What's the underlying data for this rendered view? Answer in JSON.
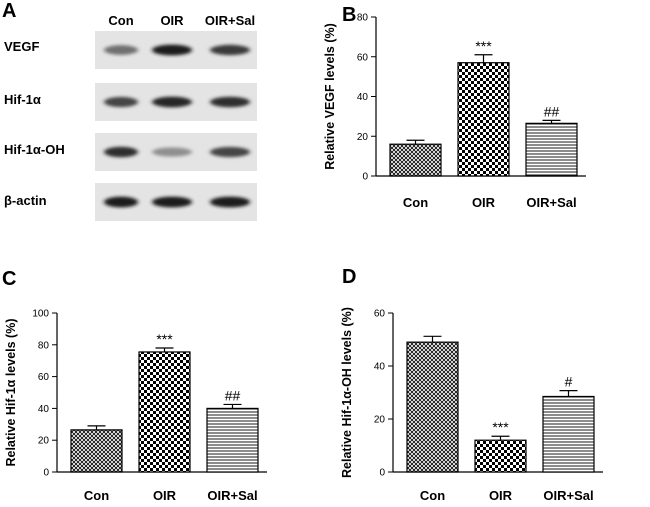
{
  "panels": {
    "A": "A",
    "B": "B",
    "C": "C",
    "D": "D"
  },
  "blot": {
    "lanes": [
      "Con",
      "OIR",
      "OIR+Sal"
    ],
    "rows": [
      {
        "label": "VEGF",
        "intensity": [
          0.55,
          0.95,
          0.8
        ]
      },
      {
        "label": "Hif-1α",
        "intensity": [
          0.75,
          0.9,
          0.85
        ]
      },
      {
        "label": "Hif-1α-OH",
        "intensity": [
          0.85,
          0.4,
          0.75
        ]
      },
      {
        "label": "β-actin",
        "intensity": [
          0.95,
          0.95,
          0.95
        ]
      }
    ]
  },
  "chart_data": [
    {
      "panel": "B",
      "type": "bar",
      "categories": [
        "Con",
        "OIR",
        "OIR+Sal"
      ],
      "values": [
        16,
        57,
        26.5
      ],
      "errors": [
        2,
        4,
        1.5
      ],
      "significance": [
        "",
        "***",
        "##"
      ],
      "patterns": [
        "crosshatch",
        "checker",
        "horizontal"
      ],
      "ylabel": "Relative VEGF levels (%)",
      "ylim": [
        0,
        80
      ],
      "yticks": [
        0,
        20,
        40,
        60,
        80
      ]
    },
    {
      "panel": "C",
      "type": "bar",
      "categories": [
        "Con",
        "OIR",
        "OIR+Sal"
      ],
      "values": [
        26.5,
        75.5,
        40
      ],
      "errors": [
        2.5,
        2.5,
        2.5
      ],
      "significance": [
        "",
        "***",
        "##"
      ],
      "patterns": [
        "crosshatch",
        "checker",
        "horizontal"
      ],
      "ylabel": "Relative Hif-1α levels (%)",
      "ylim": [
        0,
        100
      ],
      "yticks": [
        0,
        20,
        40,
        60,
        80,
        100
      ]
    },
    {
      "panel": "D",
      "type": "bar",
      "categories": [
        "Con",
        "OIR",
        "OIR+Sal"
      ],
      "values": [
        49,
        12,
        28.5
      ],
      "errors": [
        2.2,
        1.5,
        2.2
      ],
      "significance": [
        "",
        "***",
        "#"
      ],
      "patterns": [
        "crosshatch",
        "checker",
        "horizontal"
      ],
      "ylabel": "Relative Hif-1α-OH levels (%)",
      "ylim": [
        0,
        60
      ],
      "yticks": [
        0,
        20,
        40,
        60
      ]
    }
  ]
}
